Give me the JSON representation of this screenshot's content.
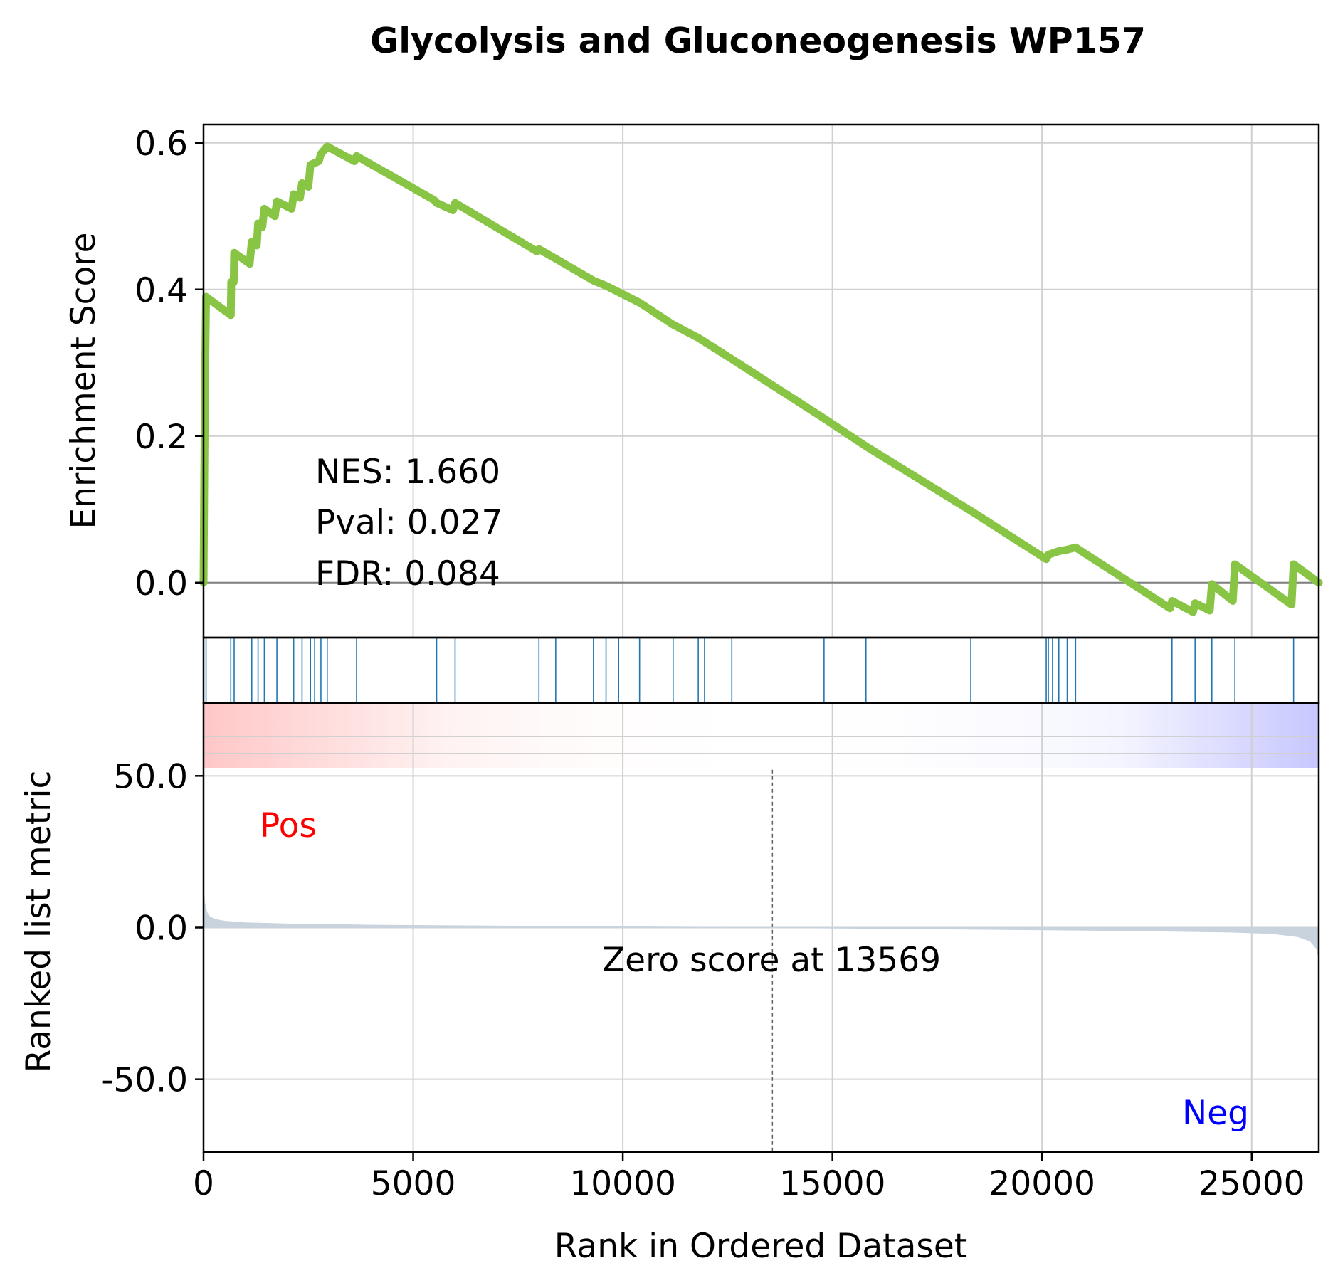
{
  "chart_data": {
    "type": "line",
    "title": "Glycolysis and Gluconeogenesis WP157",
    "xlabel": "Rank in Ordered Dataset",
    "xlim": [
      0,
      26600
    ],
    "xticks": [
      0,
      5000,
      10000,
      15000,
      20000,
      25000
    ],
    "grid": true,
    "colors": {
      "es_line": "#88c544",
      "hits": "#1f77b4",
      "metric_fill": "#c8d3de",
      "pos_label": "#ff0000",
      "neg_label": "#0000ff",
      "zero_line": "#808080"
    },
    "enrichment": {
      "ylabel": "Enrichment Score",
      "ylim": [
        -0.075,
        0.625
      ],
      "yticks": [
        "0.0",
        "0.2",
        "0.4",
        "0.6"
      ],
      "ytick_values": [
        0.0,
        0.2,
        0.4,
        0.6
      ],
      "stats": [
        "NES: 1.660",
        "Pval: 0.027",
        "FDR: 0.084"
      ],
      "points": [
        [
          0,
          0.0
        ],
        [
          30,
          0.25
        ],
        [
          60,
          0.39
        ],
        [
          650,
          0.365
        ],
        [
          660,
          0.41
        ],
        [
          720,
          0.41
        ],
        [
          730,
          0.45
        ],
        [
          1100,
          0.435
        ],
        [
          1150,
          0.465
        ],
        [
          1270,
          0.46
        ],
        [
          1300,
          0.49
        ],
        [
          1400,
          0.485
        ],
        [
          1450,
          0.51
        ],
        [
          1700,
          0.5
        ],
        [
          1750,
          0.52
        ],
        [
          2100,
          0.51
        ],
        [
          2150,
          0.53
        ],
        [
          2300,
          0.525
        ],
        [
          2350,
          0.545
        ],
        [
          2500,
          0.54
        ],
        [
          2550,
          0.57
        ],
        [
          2750,
          0.575
        ],
        [
          2800,
          0.585
        ],
        [
          2950,
          0.595
        ],
        [
          3600,
          0.575
        ],
        [
          3650,
          0.582
        ],
        [
          5500,
          0.522
        ],
        [
          5560,
          0.518
        ],
        [
          5950,
          0.508
        ],
        [
          6000,
          0.518
        ],
        [
          7950,
          0.452
        ],
        [
          8000,
          0.455
        ],
        [
          8400,
          0.442
        ],
        [
          9300,
          0.412
        ],
        [
          9600,
          0.405
        ],
        [
          10400,
          0.382
        ],
        [
          11200,
          0.352
        ],
        [
          11800,
          0.334
        ],
        [
          12600,
          0.305
        ],
        [
          14800,
          0.224
        ],
        [
          15800,
          0.186
        ],
        [
          18300,
          0.098
        ],
        [
          20100,
          0.032
        ],
        [
          20150,
          0.038
        ],
        [
          20250,
          0.04
        ],
        [
          20400,
          0.043
        ],
        [
          20600,
          0.045
        ],
        [
          20800,
          0.048
        ],
        [
          23050,
          -0.035
        ],
        [
          23100,
          -0.025
        ],
        [
          23600,
          -0.04
        ],
        [
          23650,
          -0.028
        ],
        [
          24000,
          -0.038
        ],
        [
          24050,
          -0.002
        ],
        [
          24550,
          -0.025
        ],
        [
          24600,
          0.025
        ],
        [
          25950,
          -0.03
        ],
        [
          26000,
          0.025
        ],
        [
          26600,
          0.0
        ]
      ]
    },
    "hits": [
      60,
      650,
      730,
      1150,
      1300,
      1450,
      1750,
      2150,
      2350,
      2550,
      2650,
      2800,
      2950,
      3650,
      5560,
      6000,
      8000,
      8400,
      9300,
      9600,
      9900,
      10400,
      11200,
      11800,
      11950,
      12600,
      14800,
      15800,
      18300,
      20100,
      20150,
      20250,
      20400,
      20600,
      20800,
      23100,
      23650,
      24050,
      24600,
      26000
    ],
    "ranked": {
      "ylabel": "Ranked list metric",
      "ylim": [
        -74,
        74
      ],
      "yticks": [
        "50.0",
        "0.0",
        "-50.0"
      ],
      "ytick_values": [
        50,
        0,
        -50
      ],
      "pos_label": "Pos",
      "neg_label": "Neg",
      "zero_cross": 13569,
      "zero_text": "Zero score at 13569",
      "x": [
        0,
        30,
        80,
        150,
        300,
        500,
        1000,
        2000,
        4000,
        8000,
        13569,
        18000,
        22000,
        24500,
        25500,
        26100,
        26400,
        26550,
        26600
      ],
      "values": [
        12,
        8,
        5,
        3.5,
        2.6,
        2.1,
        1.6,
        1.2,
        0.8,
        0.4,
        0,
        -0.5,
        -1.0,
        -1.5,
        -2.0,
        -3.0,
        -4.5,
        -7.0,
        -10.0
      ]
    }
  }
}
